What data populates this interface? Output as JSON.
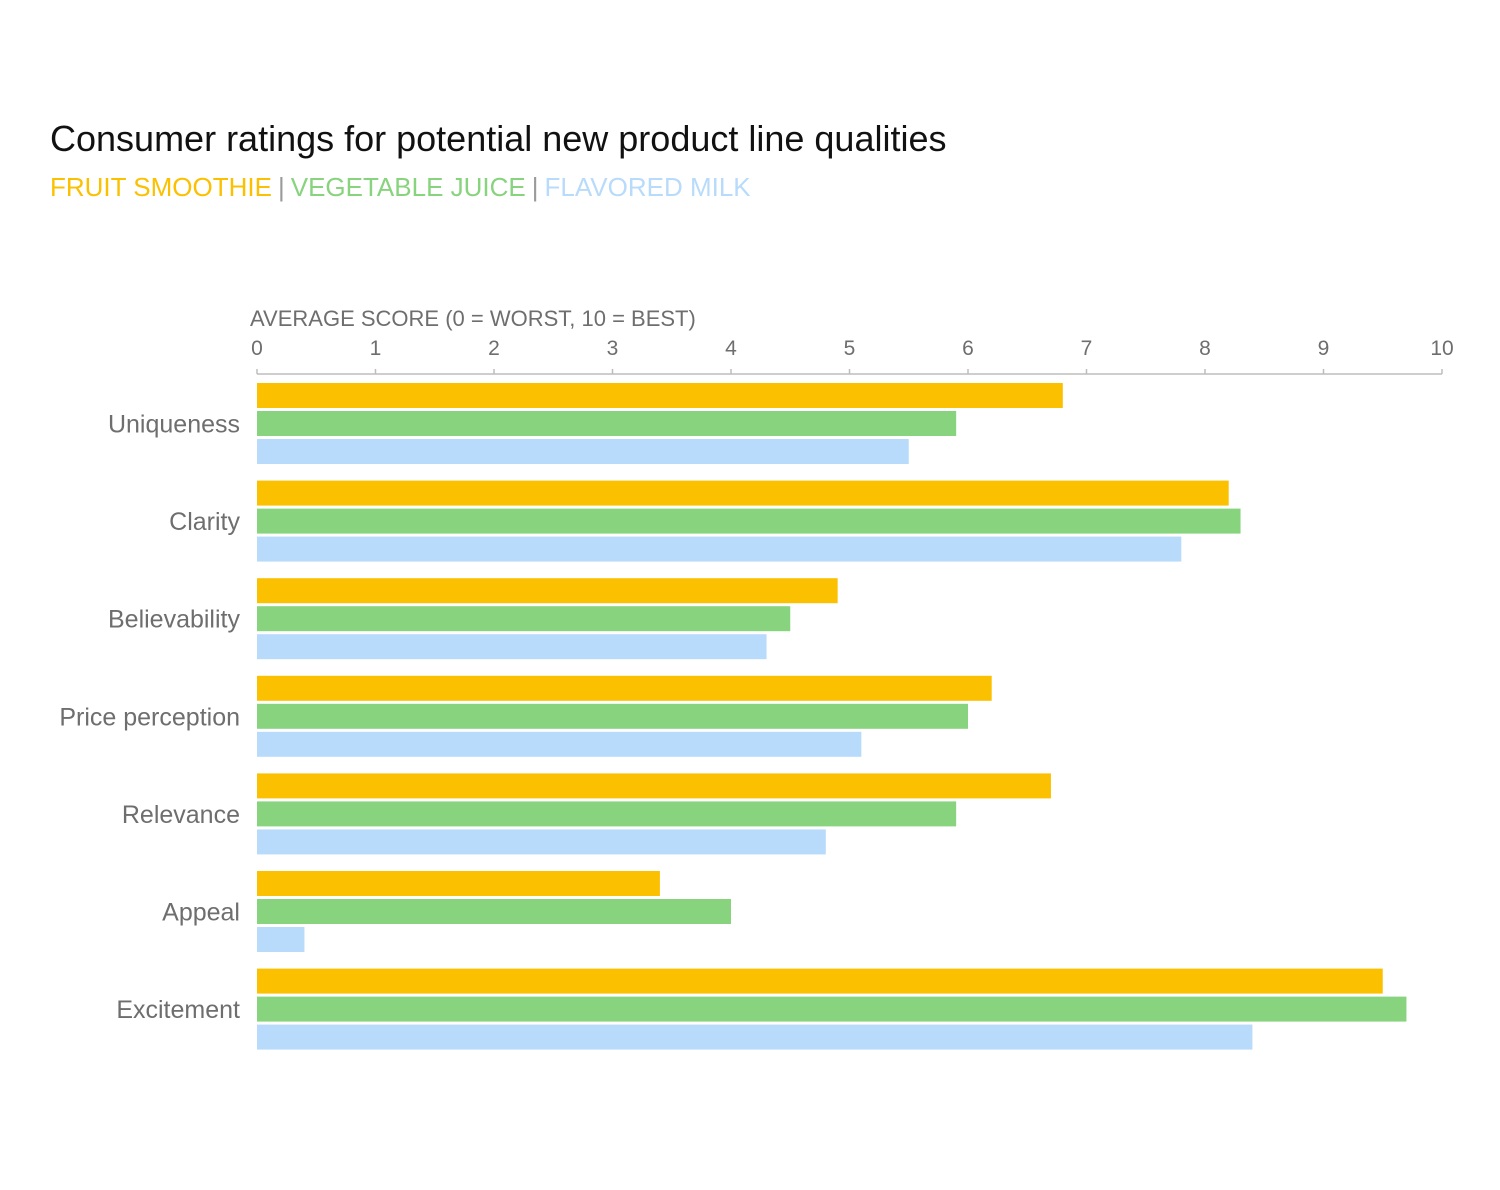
{
  "chart_data": {
    "type": "bar",
    "orientation": "horizontal",
    "title": "Consumer ratings for potential new product line qualities",
    "xlabel": "AVERAGE SCORE (0 = WORST, 10 = BEST)",
    "ylabel": "",
    "xlim": [
      0,
      10
    ],
    "xticks": [
      0,
      1,
      2,
      3,
      4,
      5,
      6,
      7,
      8,
      9,
      10
    ],
    "legend_position": "top-left",
    "legend_separator": "|",
    "grid": false,
    "categories": [
      "Uniqueness",
      "Clarity",
      "Believability",
      "Price perception",
      "Relevance",
      "Appeal",
      "Excitement"
    ],
    "series": [
      {
        "name": "FRUIT SMOOTHIE",
        "color": "#FBC000",
        "values": [
          6.8,
          8.2,
          4.9,
          6.2,
          6.7,
          3.4,
          9.5
        ]
      },
      {
        "name": "VEGETABLE JUICE",
        "color": "#88D47E",
        "values": [
          5.9,
          8.3,
          4.5,
          6.0,
          5.9,
          4.0,
          9.7
        ]
      },
      {
        "name": "FLAVORED MILK",
        "color": "#B9DBFB",
        "values": [
          5.5,
          7.8,
          4.3,
          5.1,
          4.8,
          0.4,
          8.4
        ]
      }
    ]
  }
}
